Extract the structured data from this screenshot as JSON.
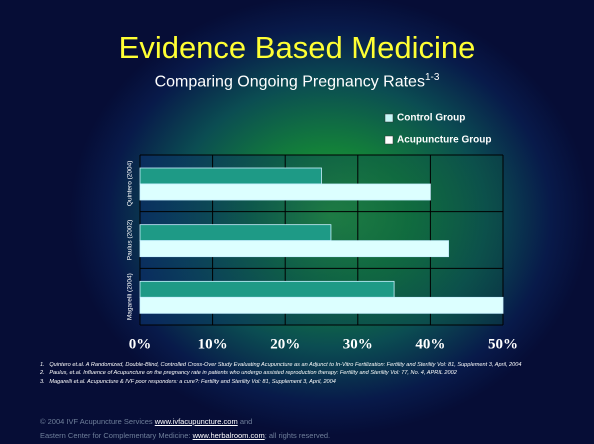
{
  "chart_data": {
    "type": "hbar",
    "title": "Evidence Based Medicine",
    "subtitle": "Comparing Ongoing Pregnancy Rates",
    "subtitle_note": "1-3",
    "categories": [
      "Quintero (2004)",
      "Paulus (2002)",
      "Magarelli (2004)"
    ],
    "series": [
      {
        "name": "Control Group",
        "color": "#1e9a86",
        "values": [
          25,
          26.3,
          35
        ]
      },
      {
        "name": "Acupuncture Group",
        "color": "#dcffff",
        "values": [
          40,
          42.5,
          50
        ]
      }
    ],
    "xlim": [
      0,
      50
    ],
    "xticks": [
      {
        "value": 0,
        "label": "0%"
      },
      {
        "value": 10,
        "label": "10%"
      },
      {
        "value": 20,
        "label": "20%"
      },
      {
        "value": 30,
        "label": "30%"
      },
      {
        "value": 40,
        "label": "40%"
      },
      {
        "value": 50,
        "label": "50%"
      }
    ],
    "grid": true
  },
  "footnotes": [
    "Quintero et.al. A Randomized, Double-Blind, Controlled Cross-Over Study Evaluating Acupuncture as an Adjunct to In-Vitro Fertilization: Fertility and Sterility Vol: 81, Supplement 3, April, 2004",
    "Paulus, et.al. Influence of Acupuncture on the pregnancy rate in patients who undergo assisted reproduction therapy: Fertility and Sterility Vol: 77, No. 4, APRIL 2002",
    "Magarelli et.al. Acupuncture & IVF poor responders: a cure?: Fertility and Sterility Vol: 81, Supplement 3, April, 2004"
  ],
  "copyright": {
    "line1": "© 2004 IVF Acupuncture Services",
    "link1": "www.ivfacupuncture.com",
    "and": "and",
    "line2": "Eastern Center for Complementary Medicine:",
    "link2": "www.herbalroom.com",
    "end": "; all rights reserved."
  }
}
